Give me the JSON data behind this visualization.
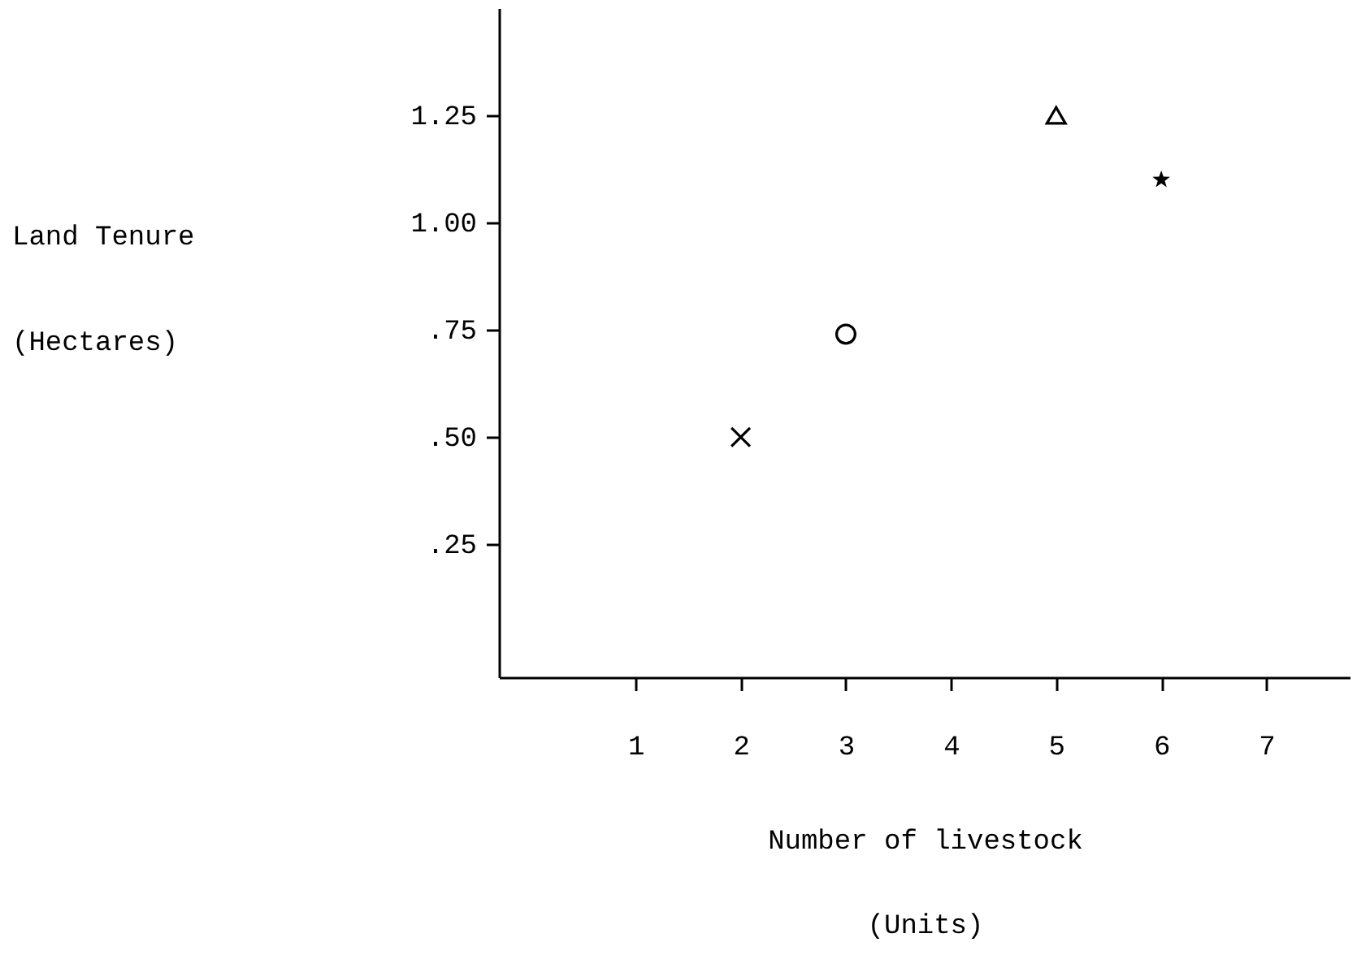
{
  "chart_data": {
    "type": "scatter",
    "xlabel": "Number of livestock\n(Units)",
    "ylabel": "Land Tenure\n(Hectares)",
    "xlim": [
      -0.3,
      7.8
    ],
    "xticks": [
      1,
      2,
      3,
      4,
      5,
      6,
      7
    ],
    "ylim": [
      -0.06,
      1.5
    ],
    "yticks": [
      {
        "value": 0.25,
        "label": ".25"
      },
      {
        "value": 0.5,
        "label": ".50"
      },
      {
        "value": 0.75,
        "label": ".75"
      },
      {
        "value": 1,
        "label": "1.00"
      },
      1.25
    ],
    "grid": false,
    "series": [
      {
        "color": "#000000",
        "marker": "cross",
        "x": [
          2
        ],
        "values": [
          0.5
        ]
      },
      {
        "color": "#000000",
        "marker": "circle",
        "x": [
          3
        ],
        "values": [
          0.74
        ]
      },
      {
        "color": "#000000",
        "marker": "triangle",
        "x": [
          5
        ],
        "values": [
          1.25
        ]
      },
      {
        "color": "#000000",
        "marker": "star",
        "x": [
          6
        ],
        "values": [
          1.1
        ]
      }
    ]
  }
}
